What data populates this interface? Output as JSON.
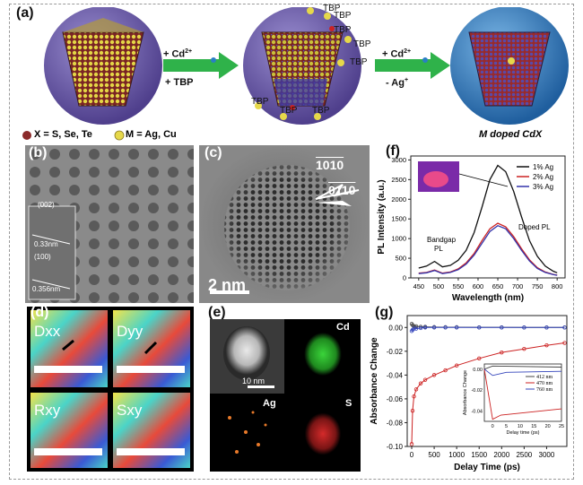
{
  "panels": {
    "a": "(a)",
    "b": "(b)",
    "c": "(c)",
    "d": "(d)",
    "e": "(e)",
    "f": "(f)",
    "g": "(g)"
  },
  "scheme": {
    "arrow1_top": "+ Cd",
    "arrow1_bottom": "+ TBP",
    "arrow2_top": "+ Cd",
    "arrow2_bottom": "- Ag",
    "sup_charge": "2+",
    "sup_plus": "+",
    "tbp_labels": [
      "TBP",
      "TBP",
      "TBP",
      "TBP",
      "TBP",
      "TBP",
      "TBP",
      "TBP"
    ],
    "legend_x": "X = S, Se, Te",
    "legend_m": "M = Ag, Cu",
    "product_label": "M doped CdX",
    "colors": {
      "sphere": "#6a5aa8",
      "anion": "#8b2a2a",
      "cation": "#e6d84a",
      "arrow": "#2fb24a",
      "product_sphere": "#2a7fc4"
    }
  },
  "panel_b": {
    "fringe1": "(002)",
    "scale1": "0.33nm",
    "fringe2": "(100)",
    "scale2": "0.356nm"
  },
  "panel_c": {
    "dir1": "1010",
    "dir2": "0110",
    "scale": "2 nm"
  },
  "panel_d": {
    "maps": [
      "Dxx",
      "Dyy",
      "Rxy",
      "Sxy"
    ]
  },
  "panel_e": {
    "maps": [
      "Cd",
      "Ag",
      "S"
    ],
    "scale": "10 nm"
  },
  "chart_data": [
    {
      "type": "line",
      "panel": "f",
      "xlabel": "Wavelength (nm)",
      "ylabel": "PL Intensity (a.u.)",
      "xlim": [
        430,
        820
      ],
      "ylim": [
        0,
        3100
      ],
      "xticks": [
        450,
        500,
        550,
        600,
        650,
        700,
        750,
        800
      ],
      "yticks": [
        0,
        500,
        1000,
        1500,
        2000,
        2500,
        3000
      ],
      "annotations": [
        "Bandgap",
        "PL",
        "Doped PL"
      ],
      "x": [
        450,
        470,
        490,
        510,
        530,
        550,
        570,
        590,
        610,
        630,
        650,
        670,
        690,
        710,
        730,
        750,
        770,
        790,
        800
      ],
      "series": [
        {
          "name": "1% Ag",
          "color": "#111111",
          "values": [
            250,
            300,
            420,
            280,
            320,
            450,
            700,
            1150,
            1800,
            2500,
            2860,
            2700,
            2200,
            1550,
            950,
            550,
            300,
            170,
            130
          ]
        },
        {
          "name": "2% Ag",
          "color": "#cc2222",
          "values": [
            120,
            140,
            200,
            120,
            150,
            230,
            380,
            620,
            950,
            1250,
            1390,
            1300,
            1050,
            740,
            460,
            260,
            150,
            90,
            70
          ]
        },
        {
          "name": "3% Ag",
          "color": "#3333aa",
          "values": [
            110,
            130,
            190,
            110,
            140,
            210,
            350,
            580,
            880,
            1180,
            1330,
            1250,
            1000,
            700,
            430,
            240,
            140,
            85,
            65
          ]
        }
      ]
    },
    {
      "type": "line",
      "panel": "g",
      "xlabel": "Delay Time (ps)",
      "ylabel": "Absorbance Change",
      "xlim": [
        -100,
        3450
      ],
      "ylim": [
        -0.1,
        0.01
      ],
      "xticks": [
        0,
        500,
        1000,
        1500,
        2000,
        2500,
        3000
      ],
      "yticks": [
        0.0,
        -0.02,
        -0.04,
        -0.06,
        -0.08,
        -0.1
      ],
      "ytick_labels": [
        "0.00",
        "-0.02",
        "-0.04",
        "-0.06",
        "-0.08",
        "-0.10"
      ],
      "x": [
        0,
        20,
        50,
        100,
        200,
        300,
        500,
        750,
        1000,
        1500,
        2000,
        2500,
        3000,
        3400
      ],
      "series": [
        {
          "name": "412 nm",
          "color": "#444444",
          "values": [
            0.003,
            0.002,
            0.001,
            0.001,
            0.0005,
            0.0005,
            0.0003,
            0.0002,
            0.0002,
            0.0001,
            0.0001,
            0.0,
            0.0,
            0.0
          ]
        },
        {
          "name": "470 nm",
          "color": "#cc2222",
          "values": [
            -0.098,
            -0.07,
            -0.058,
            -0.052,
            -0.047,
            -0.044,
            -0.04,
            -0.036,
            -0.032,
            -0.026,
            -0.021,
            -0.018,
            -0.015,
            -0.013
          ]
        },
        {
          "name": "760 nm",
          "color": "#3344bb",
          "values": [
            -0.003,
            -0.002,
            -0.001,
            -0.001,
            -0.0005,
            0.0,
            0.0,
            0.0,
            0.0,
            0.0,
            0.0,
            0.0,
            0.0,
            0.0
          ]
        }
      ],
      "inset": {
        "xlabel": "Delay time (ps)",
        "ylabel": "Absorbance Change",
        "xlim": [
          -3,
          25
        ],
        "ylim": [
          -0.05,
          0.005
        ],
        "xticks": [
          0,
          5,
          10,
          15,
          20,
          25
        ],
        "yticks": [
          0.0,
          -0.02,
          -0.04
        ],
        "ytick_labels": [
          "0.00",
          "-0.02",
          "-0.04"
        ],
        "legend": [
          "412 nm",
          "470 nm",
          "760 nm"
        ]
      }
    }
  ]
}
